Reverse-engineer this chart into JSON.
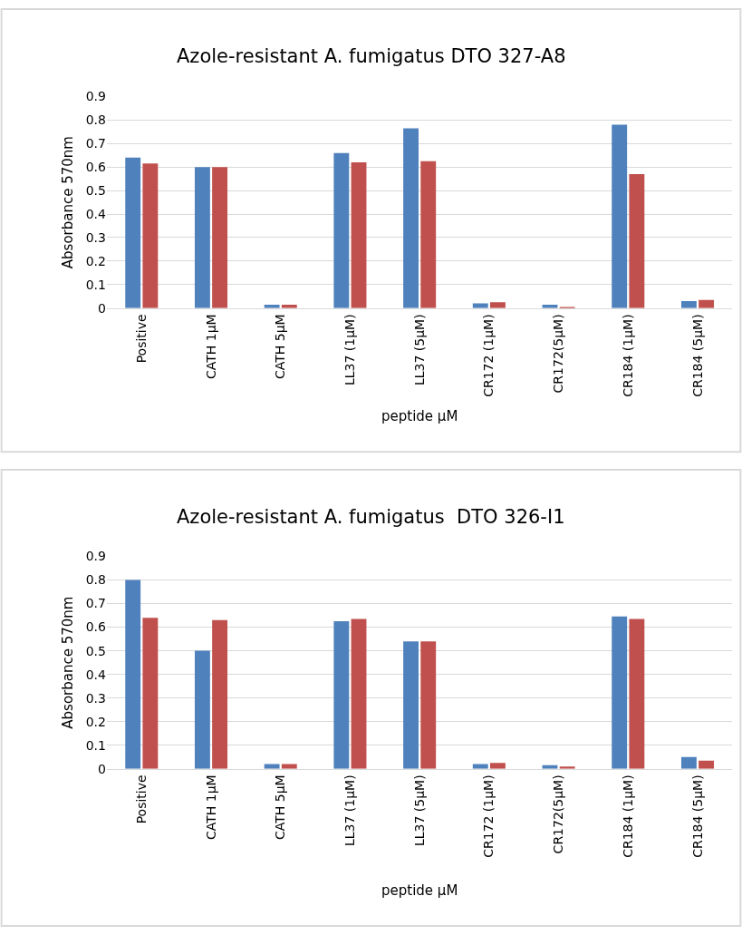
{
  "chart_data": [
    {
      "type": "bar",
      "title": "Azole-resistant A. fumigatus DTO 327-A8",
      "xlabel": "peptide µM",
      "ylabel": "Absorbance 570nm",
      "categories": [
        "Positive",
        "CATH 1µM",
        "CATH 5µM",
        "LL37 (1µM)",
        "LL37 (5µM)",
        "CR172 (1µM)",
        "CR172(5µM)",
        "CR184 (1µM)",
        "CR184 (5µM)"
      ],
      "series": [
        {
          "color": "#4f81bd",
          "values": [
            0.64,
            0.6,
            0.015,
            0.66,
            0.765,
            0.02,
            0.015,
            0.78,
            0.03
          ]
        },
        {
          "color": "#c0504d",
          "values": [
            0.615,
            0.6,
            0.015,
            0.62,
            0.625,
            0.025,
            0.005,
            0.57,
            0.035
          ]
        }
      ],
      "ylim": [
        0,
        0.9
      ],
      "yticks": [
        {
          "value": 0,
          "label": "0"
        },
        0.1,
        0.2,
        0.3,
        0.4,
        0.5,
        0.6,
        0.7,
        0.8,
        0.9
      ],
      "grid": "y"
    },
    {
      "type": "bar",
      "title": "Azole-resistant A. fumigatus  DTO 326-I1",
      "xlabel": "peptide µM",
      "ylabel": "Absorbance 570nm",
      "categories": [
        "Positive",
        "CATH 1µM",
        "CATH 5µM",
        "LL37 (1µM)",
        "LL37 (5µM)",
        "CR172 (1µM)",
        "CR172(5µM)",
        "CR184 (1µM)",
        "CR184 (5µM)"
      ],
      "series": [
        {
          "color": "#4f81bd",
          "values": [
            0.8,
            0.5,
            0.02,
            0.625,
            0.54,
            0.02,
            0.015,
            0.645,
            0.05
          ]
        },
        {
          "color": "#c0504d",
          "values": [
            0.64,
            0.63,
            0.02,
            0.635,
            0.54,
            0.025,
            0.01,
            0.635,
            0.035
          ]
        }
      ],
      "ylim": [
        0,
        0.9
      ],
      "yticks": [
        {
          "value": 0,
          "label": "0"
        },
        0.1,
        0.2,
        0.3,
        0.4,
        0.5,
        0.6,
        0.7,
        0.8,
        0.9
      ],
      "grid": "y"
    }
  ]
}
